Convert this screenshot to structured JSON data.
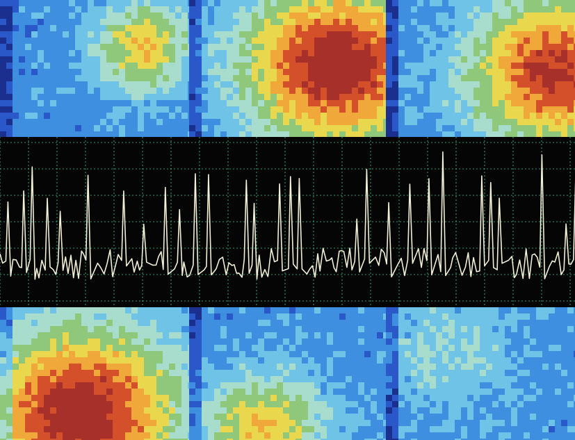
{
  "figure": {
    "description_free": true,
    "colors": {
      "trace": "#f2f0d6",
      "grid": "#3fcf9a",
      "strip_background": "#050505",
      "map_scale": [
        "#1b2f8f",
        "#2a58c8",
        "#3f8fe0",
        "#6ec3e6",
        "#a8dccd",
        "#8fc87a",
        "#e9d84e",
        "#f0a83a",
        "#d4502a",
        "#a8302a"
      ]
    },
    "panels": {
      "top": [
        {
          "id": "top-left",
          "hotspot": [
            0.72,
            0.32
          ],
          "intensity": 0.55,
          "spread": 0.18
        },
        {
          "id": "top-center",
          "hotspot": [
            0.72,
            0.45
          ],
          "intensity": 0.95,
          "spread": 0.32
        },
        {
          "id": "top-right",
          "hotspot": [
            0.85,
            0.5
          ],
          "intensity": 0.85,
          "spread": 0.3
        }
      ],
      "bottom": [
        {
          "id": "bottom-left",
          "hotspot": [
            0.4,
            0.75
          ],
          "intensity": 0.95,
          "spread": 0.35
        },
        {
          "id": "bottom-center",
          "hotspot": [
            0.35,
            0.85
          ],
          "intensity": 0.55,
          "spread": 0.22
        },
        {
          "id": "bottom-right",
          "hotspot": [
            0.3,
            0.3
          ],
          "intensity": 0.2,
          "spread": 0.25
        }
      ]
    }
  }
}
